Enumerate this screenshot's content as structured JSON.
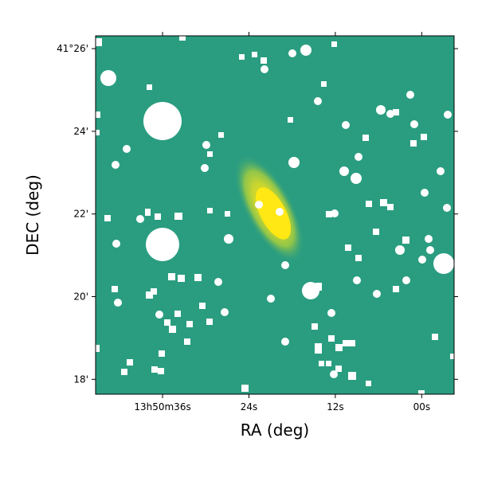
{
  "chart_data": {
    "type": "image",
    "xlabel": "RA (deg)",
    "ylabel": "DEC (deg)",
    "xlim": [
      45.3,
      -4.5
    ],
    "xticks": [
      {
        "value": 36,
        "label": "13h50m36s"
      },
      {
        "value": 24,
        "label": "24s"
      },
      {
        "value": 12,
        "label": "12s"
      },
      {
        "value": 0,
        "label": "00s"
      }
    ],
    "ylim": [
      17.64,
      26.31
    ],
    "yticks": [
      {
        "value": 26,
        "label": "41°26'"
      },
      {
        "value": 24,
        "label": "24'"
      },
      {
        "value": 22,
        "label": "22'"
      },
      {
        "value": 20,
        "label": "20'"
      },
      {
        "value": 18,
        "label": "18'"
      }
    ]
  }
}
